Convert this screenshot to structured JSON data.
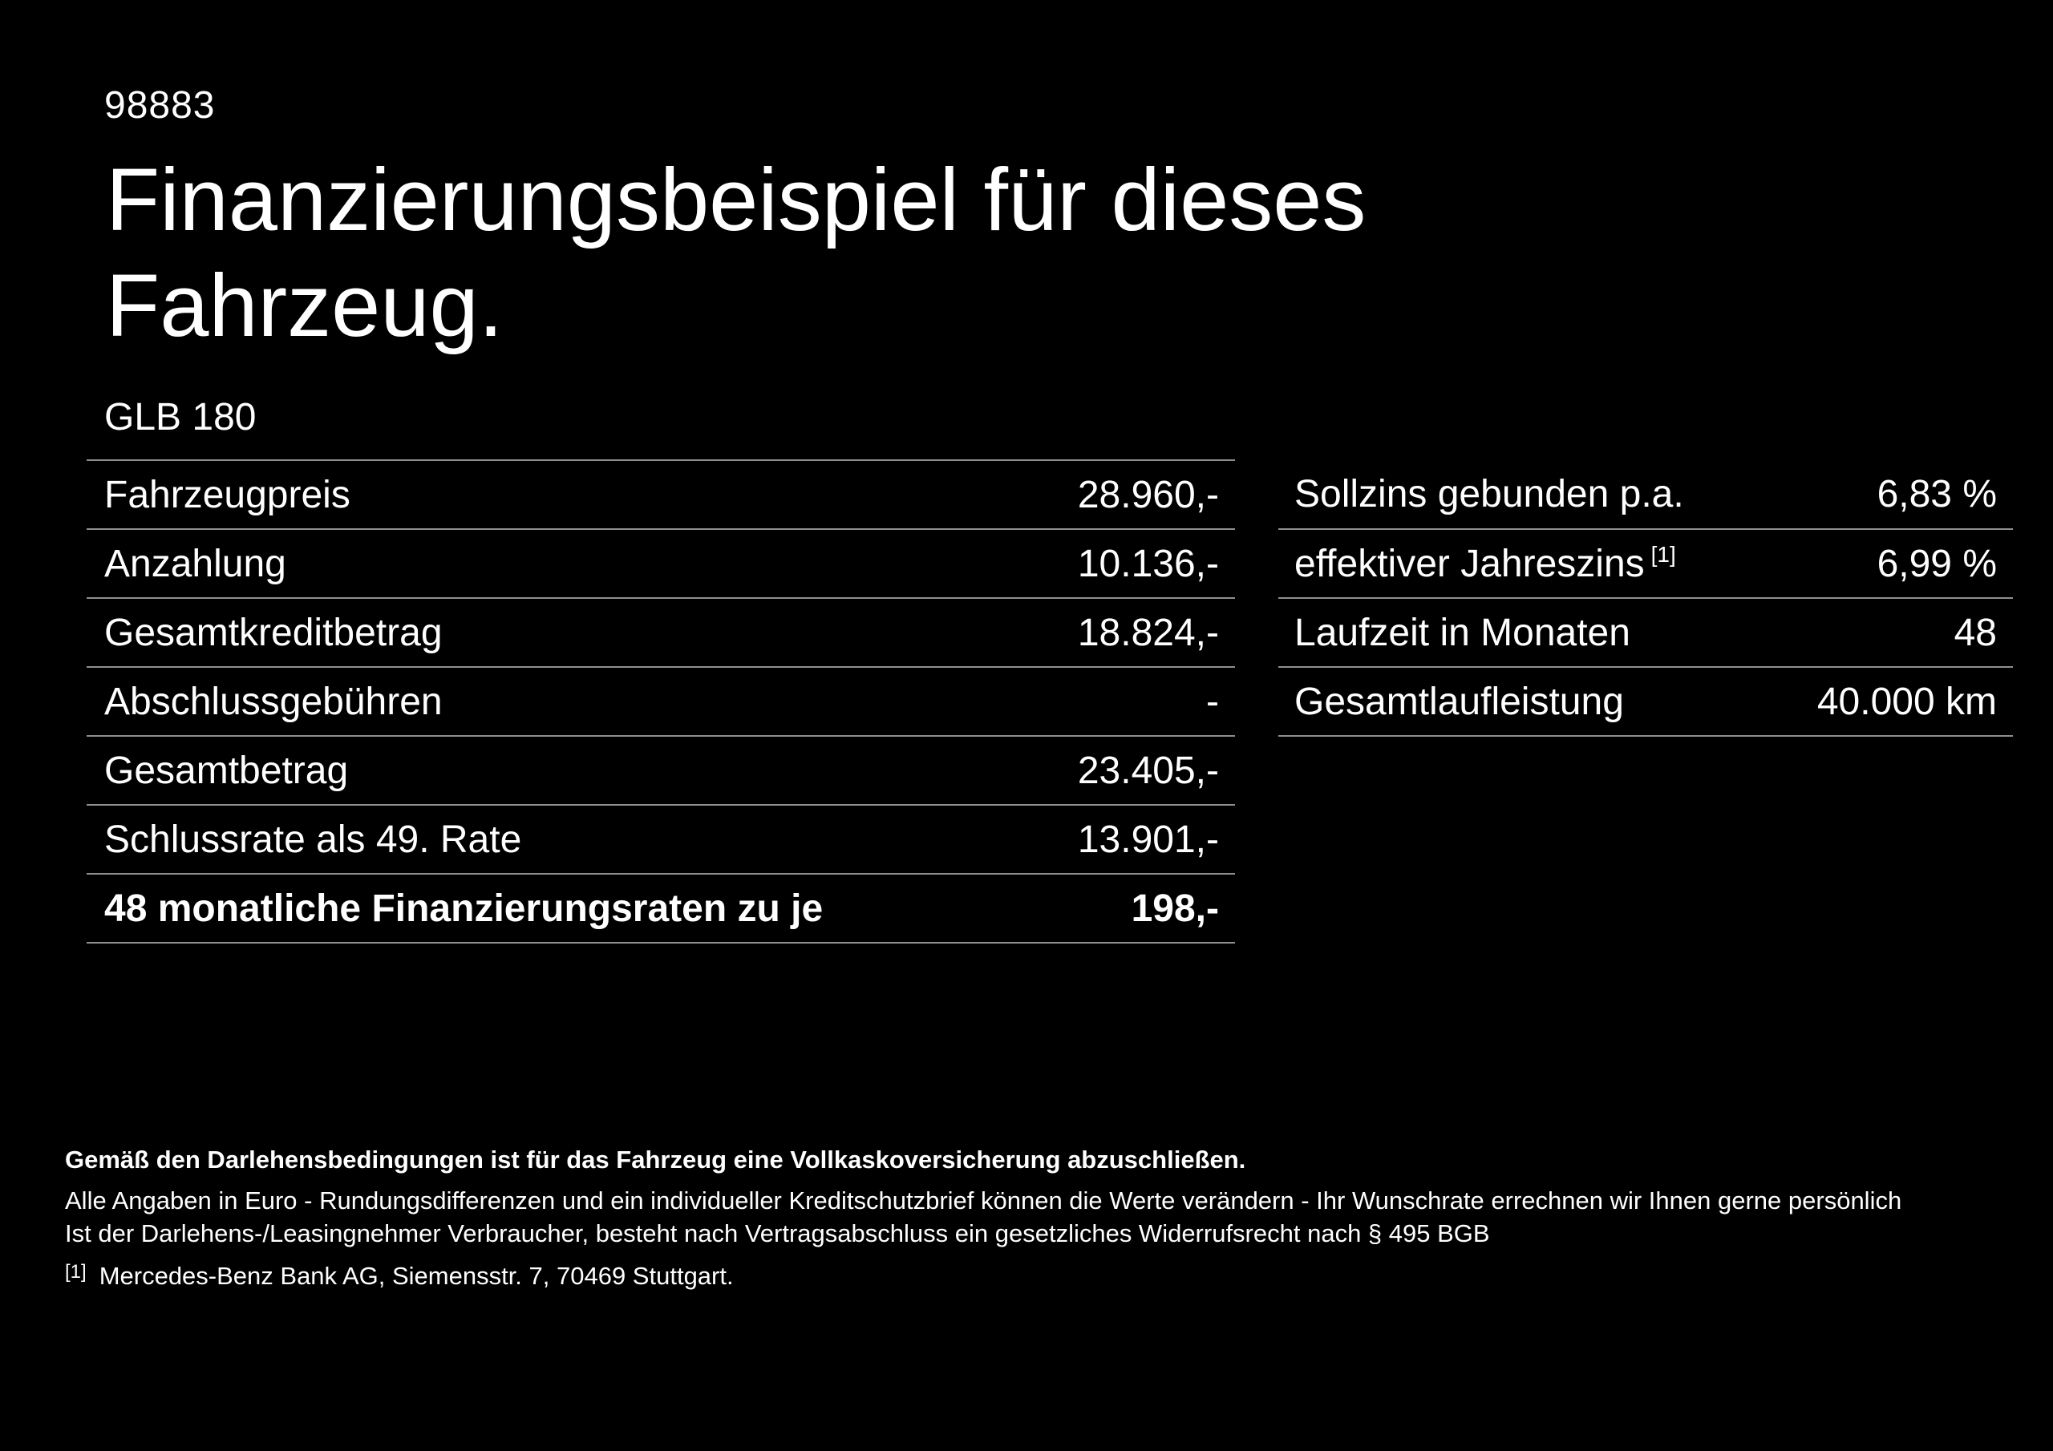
{
  "colors": {
    "background": "#000000",
    "text": "#ffffff",
    "divider": "#8f8f8f"
  },
  "header": {
    "doc_number": "98883",
    "title": "Finanzierungsbeispiel für dieses\nFahrzeug.",
    "model": "GLB 180"
  },
  "left_table": {
    "rows": [
      {
        "label": "Fahrzeugpreis",
        "value": "28.960,-"
      },
      {
        "label": "Anzahlung",
        "value": "10.136,-"
      },
      {
        "label": "Gesamtkreditbetrag",
        "value": "18.824,-"
      },
      {
        "label": "Abschlussgebühren",
        "value": "-"
      },
      {
        "label": "Gesamtbetrag",
        "value": "23.405,-"
      },
      {
        "label": "Schlussrate als 49. Rate",
        "value": "13.901,-"
      },
      {
        "label": "48 monatliche Finanzierungsraten zu je",
        "value": "198,-"
      }
    ]
  },
  "right_table": {
    "rows": [
      {
        "label": "Sollzins gebunden p.a.",
        "value": "6,83 %"
      },
      {
        "label": "effektiver Jahreszins",
        "sup": "[1]",
        "value": "6,99 %"
      },
      {
        "label": "Laufzeit in Monaten",
        "value": "48"
      },
      {
        "label": "Gesamtlaufleistung",
        "value": "40.000 km"
      }
    ]
  },
  "footer": {
    "bold_note": "Gemäß den Darlehensbedingungen ist für das Fahrzeug eine Vollkaskoversicherung abzuschließen.",
    "note_line1": "Alle Angaben in Euro - Rundungsdifferenzen und ein individueller Kreditschutzbrief können die Werte verändern - Ihr Wunschrate errechnen wir Ihnen gerne persönlich",
    "note_line2": "Ist der Darlehens-/Leasingnehmer Verbraucher, besteht nach Vertragsabschluss ein gesetzliches Widerrufsrecht nach § 495 BGB",
    "footnote_marker": "[1]",
    "footnote_text": "Mercedes-Benz Bank AG, Siemensstr. 7, 70469 Stuttgart."
  }
}
